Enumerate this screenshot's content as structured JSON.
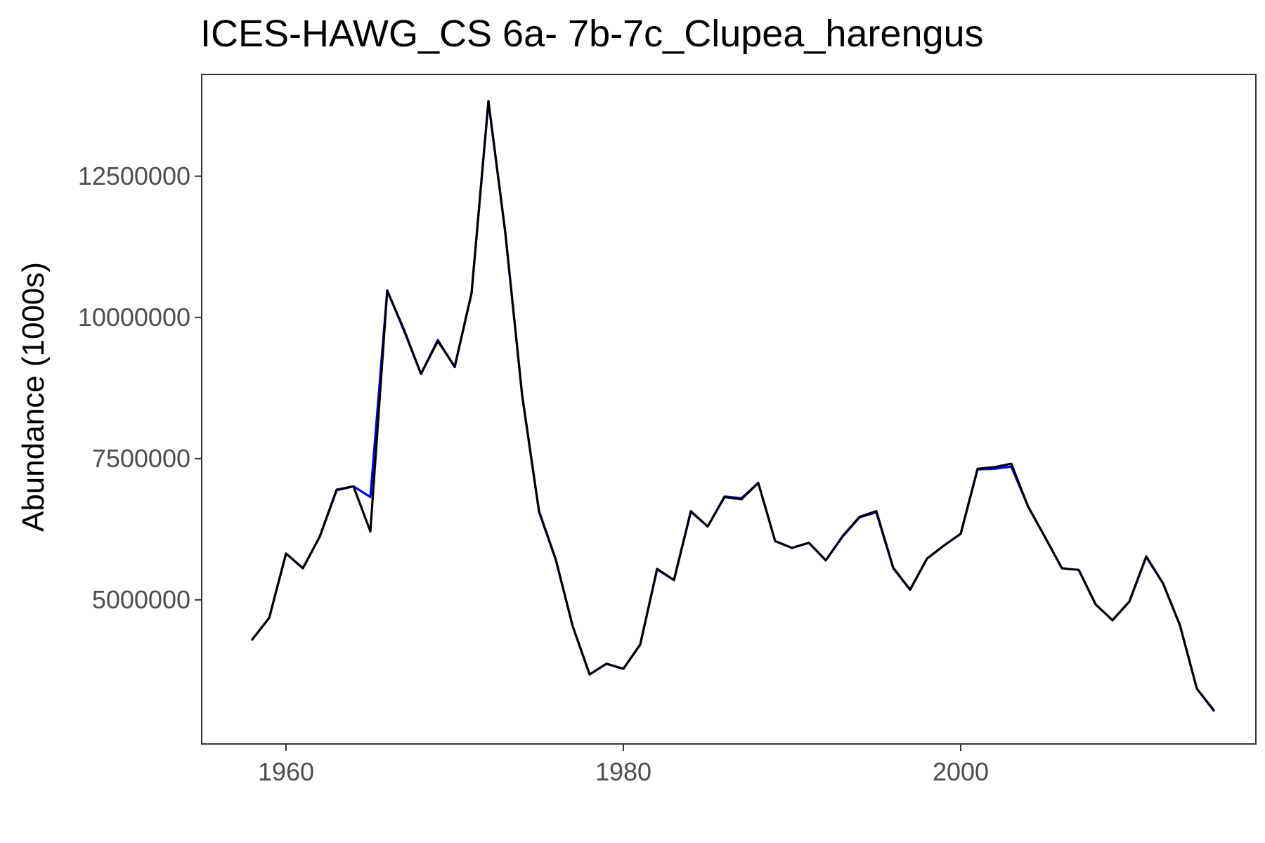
{
  "chart_data": {
    "type": "line",
    "title": "ICES-HAWG_CS 6a- 7b-7c_Clupea_harengus",
    "xlabel": "",
    "ylabel": "Abundance (1000s)",
    "xlim": [
      1955,
      2017.5
    ],
    "ylim": [
      2450000,
      14300000
    ],
    "x_ticks": [
      1960,
      1980,
      2000
    ],
    "y_ticks": [
      5000000,
      7500000,
      10000000,
      12500000
    ],
    "x_tick_labels": [
      "1960",
      "1980",
      "2000"
    ],
    "y_tick_labels": [
      "5000000",
      "7500000",
      "10000000",
      "12500000"
    ],
    "grid": false,
    "legend": "none",
    "x": [
      1958,
      1959,
      1960,
      1961,
      1962,
      1963,
      1964,
      1965,
      1966,
      1967,
      1968,
      1969,
      1970,
      1971,
      1972,
      1973,
      1974,
      1975,
      1976,
      1977,
      1978,
      1979,
      1980,
      1981,
      1982,
      1983,
      1984,
      1985,
      1986,
      1987,
      1988,
      1989,
      1990,
      1991,
      1992,
      1993,
      1994,
      1995,
      1996,
      1997,
      1998,
      1999,
      2000,
      2001,
      2002,
      2003,
      2004,
      2005,
      2006,
      2007,
      2008,
      2009,
      2010,
      2011,
      2012,
      2013,
      2014,
      2015
    ],
    "series": [
      {
        "color": "#0000ff",
        "values": [
          4300000,
          4680000,
          5820000,
          5560000,
          6120000,
          6940000,
          7010000,
          6820000,
          10480000,
          9760000,
          9000000,
          9600000,
          9120000,
          10430000,
          13820000,
          11500000,
          8620000,
          6560000,
          5700000,
          4530000,
          3680000,
          3870000,
          3780000,
          4210000,
          5540000,
          5350000,
          6560000,
          6300000,
          6830000,
          6800000,
          7070000,
          6040000,
          5920000,
          6010000,
          5700000,
          6120000,
          6460000,
          6550000,
          5560000,
          5180000,
          5730000,
          5960000,
          6170000,
          7310000,
          7320000,
          7360000,
          6650000,
          6110000,
          5560000,
          5530000,
          4920000,
          4640000,
          4970000,
          5760000,
          5290000,
          4550000,
          3430000,
          3040000
        ]
      },
      {
        "color": "#000000",
        "values": [
          4300000,
          4680000,
          5820000,
          5560000,
          6120000,
          6950000,
          7010000,
          6210000,
          10470000,
          9780000,
          9000000,
          9580000,
          9130000,
          10430000,
          13830000,
          11500000,
          8620000,
          6570000,
          5710000,
          4530000,
          3680000,
          3870000,
          3780000,
          4210000,
          5550000,
          5350000,
          6570000,
          6300000,
          6820000,
          6780000,
          7070000,
          6040000,
          5920000,
          6010000,
          5700000,
          6130000,
          6470000,
          6570000,
          5570000,
          5180000,
          5730000,
          5960000,
          6170000,
          7320000,
          7350000,
          7410000,
          6650000,
          6110000,
          5560000,
          5530000,
          4920000,
          4640000,
          4970000,
          5770000,
          5290000,
          4550000,
          3430000,
          3050000
        ]
      }
    ]
  }
}
